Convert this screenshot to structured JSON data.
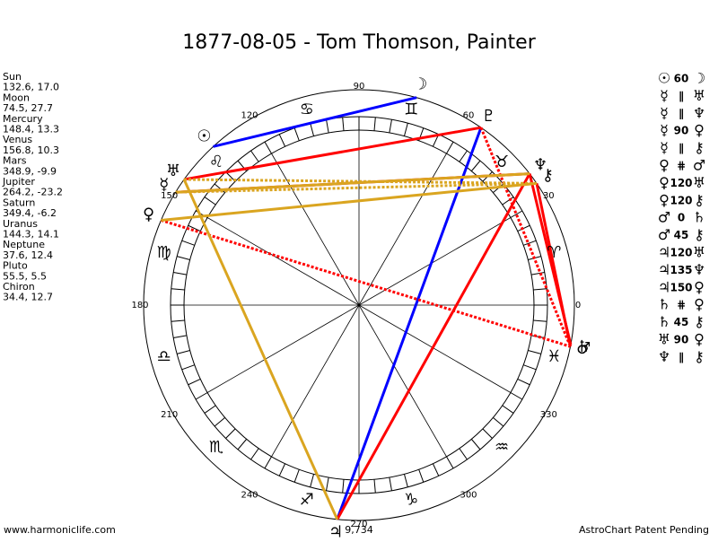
{
  "header": {
    "title": "1877-08-05 - Tom Thomson, Painter"
  },
  "planets": [
    {
      "name": "Sun",
      "position": "132.6, 17.0",
      "glyph": "☉"
    },
    {
      "name": "Moon",
      "position": "74.5, 27.7",
      "glyph": "☽"
    },
    {
      "name": "Mercury",
      "position": "148.4, 13.3",
      "glyph": "☿"
    },
    {
      "name": "Venus",
      "position": "156.8, 10.3",
      "glyph": "♀"
    },
    {
      "name": "Mars",
      "position": "348.9, -9.9",
      "glyph": "♂"
    },
    {
      "name": "Jupiter",
      "position": "264.2, -23.2",
      "glyph": "♃"
    },
    {
      "name": "Saturn",
      "position": "349.4, -6.2",
      "glyph": "♄"
    },
    {
      "name": "Uranus",
      "position": "144.3, 14.1",
      "glyph": "♅"
    },
    {
      "name": "Neptune",
      "position": "37.6, 12.4",
      "glyph": "♆"
    },
    {
      "name": "Pluto",
      "position": "55.5, 5.5",
      "glyph": "♇"
    },
    {
      "name": "Chiron",
      "position": "34.4, 12.7",
      "glyph": "⚷"
    }
  ],
  "degree_labels": [
    0,
    30,
    60,
    90,
    120,
    150,
    180,
    210,
    240,
    270,
    300,
    330
  ],
  "signs": [
    "♈",
    "♉",
    "♊",
    "♋",
    "♌",
    "♍",
    "♎",
    "♏",
    "♐",
    "♑",
    "♒",
    "♓"
  ],
  "aspects": [
    {
      "planet1": "☉",
      "aspect": "60",
      "planet2": "☽"
    },
    {
      "planet1": "☿",
      "aspect": "∥",
      "planet2": "♅"
    },
    {
      "planet1": "☿",
      "aspect": "∥",
      "planet2": "♆"
    },
    {
      "planet1": "☿",
      "aspect": "90",
      "planet2": "♀"
    },
    {
      "planet1": "☿",
      "aspect": "∥",
      "planet2": "⚷"
    },
    {
      "planet1": "♀",
      "aspect": "⋕",
      "planet2": "♂"
    },
    {
      "planet1": "♀",
      "aspect": "120",
      "planet2": "♅"
    },
    {
      "planet1": "♀",
      "aspect": "120",
      "planet2": "⚷"
    },
    {
      "planet1": "♂",
      "aspect": "0",
      "planet2": "♄"
    },
    {
      "planet1": "♂",
      "aspect": "45",
      "planet2": "⚷"
    },
    {
      "planet1": "♃",
      "aspect": "120",
      "planet2": "♅"
    },
    {
      "planet1": "♃",
      "aspect": "135",
      "planet2": "♆"
    },
    {
      "planet1": "♃",
      "aspect": "150",
      "planet2": "♀"
    },
    {
      "planet1": "♄",
      "aspect": "⋕",
      "planet2": "♀"
    },
    {
      "planet1": "♄",
      "aspect": "45",
      "planet2": "⚷"
    },
    {
      "planet1": "♅",
      "aspect": "90",
      "planet2": "♀"
    },
    {
      "planet1": "♆",
      "aspect": "∥",
      "planet2": "⚷"
    }
  ],
  "aspect_lines": [
    {
      "from": 0,
      "to": 1,
      "color": "#0000ff",
      "style": "solid"
    },
    {
      "from": 5,
      "to": 9,
      "color": "#0000ff",
      "style": "solid"
    },
    {
      "from": 7,
      "to": 9,
      "color": "#ff0000",
      "style": "solid"
    },
    {
      "from": 2,
      "to": 8,
      "color": "#ff0000",
      "style": "solid"
    },
    {
      "from": 9,
      "to": 4,
      "color": "#ff0000",
      "style": "dotted"
    },
    {
      "from": 3,
      "to": 4,
      "color": "#ff0000",
      "style": "dotted"
    },
    {
      "from": 8,
      "to": 6,
      "color": "#ff0000",
      "style": "solid"
    },
    {
      "from": 10,
      "to": 4,
      "color": "#ff0000",
      "style": "solid"
    },
    {
      "from": 5,
      "to": 8,
      "color": "#ff0000",
      "style": "solid"
    },
    {
      "from": 5,
      "to": 7,
      "color": "#daa520",
      "style": "solid"
    },
    {
      "from": 3,
      "to": 10,
      "color": "#daa520",
      "style": "solid"
    },
    {
      "from": 2,
      "to": 8,
      "color": "#daa520",
      "style": "solid"
    },
    {
      "from": 7,
      "to": 10,
      "color": "#daa520",
      "style": "dotted"
    },
    {
      "from": 2,
      "to": 10,
      "color": "#daa520",
      "style": "dotted"
    }
  ],
  "count": "9,734",
  "footer": {
    "left": "www.harmoniclife.com",
    "right": "AstroChart Patent Pending"
  }
}
